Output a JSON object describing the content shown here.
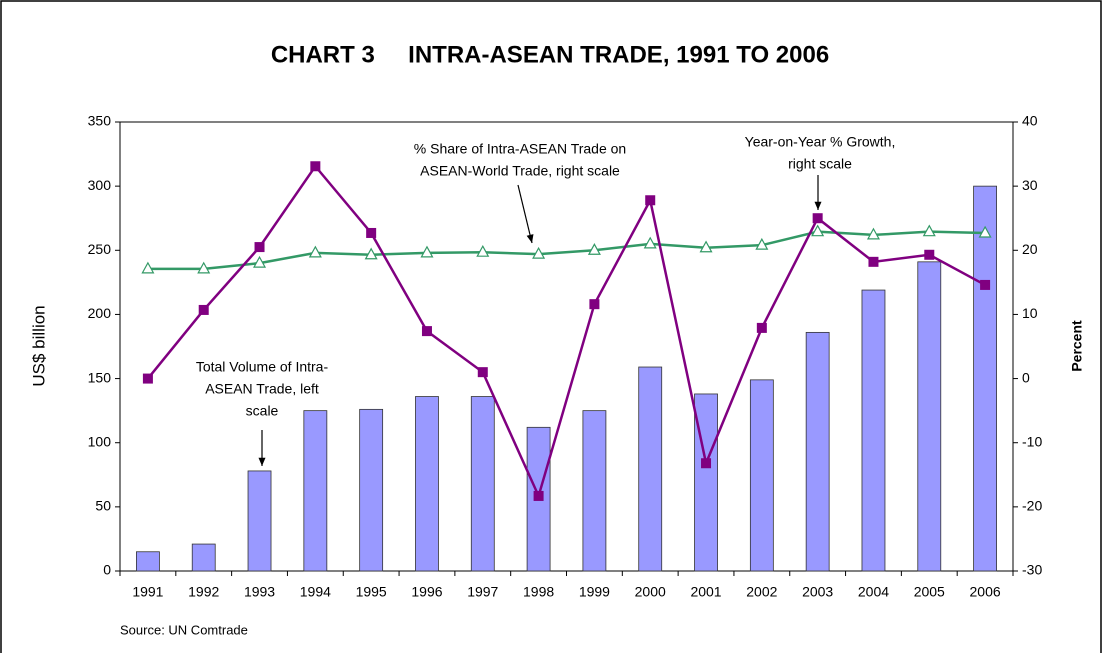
{
  "chart_data": {
    "type": "bar_line",
    "title": "CHART 3     INTRA-ASEAN TRADE, 1991 TO 2006",
    "y_label": "US$ billion",
    "y2_label": "Percent",
    "source": "Source: UN Comtrade",
    "categories": [
      "1991",
      "1992",
      "1993",
      "1994",
      "1995",
      "1996",
      "1997",
      "1998",
      "1999",
      "2000",
      "2001",
      "2002",
      "2003",
      "2004",
      "2005",
      "2006"
    ],
    "series": [
      {
        "name": "Total Volume of Intra-ASEAN Trade",
        "type": "bar",
        "color": "#9999ff",
        "values": [
          15,
          21,
          78,
          125,
          126,
          136,
          136,
          112,
          125,
          159,
          138,
          149,
          186,
          219,
          241,
          300
        ]
      },
      {
        "name": "% Share of Intra-ASEAN Trade on ASEAN-World Trade",
        "type": "line",
        "marker": "triangle",
        "axis": "y2",
        "color": "#339966",
        "values": [
          17.1,
          17.1,
          18.0,
          19.6,
          19.3,
          19.6,
          19.7,
          19.4,
          20.0,
          21.0,
          20.4,
          20.8,
          22.9,
          22.4,
          22.9,
          22.7
        ]
      },
      {
        "name": "Year-on-Year % Growth",
        "type": "line",
        "marker": "square",
        "axis": "y2",
        "color": "#800080",
        "values": [
          0,
          10.7,
          20.5,
          33.1,
          22.7,
          7.4,
          1.0,
          -18.3,
          11.6,
          27.8,
          -13.2,
          7.9,
          25.0,
          18.2,
          19.3,
          14.6
        ]
      }
    ],
    "ylim": [
      0,
      350
    ],
    "yticks": [
      0,
      50,
      100,
      150,
      200,
      250,
      300,
      350
    ],
    "y2lim": [
      -30,
      40
    ],
    "y2ticks": [
      -30,
      -20,
      -10,
      0,
      10,
      20,
      30,
      40
    ],
    "annotations": [
      {
        "lines": [
          "% Share of Intra-ASEAN Trade on",
          "ASEAN-World Trade, right scale"
        ]
      },
      {
        "lines": [
          "Year-on-Year % Growth,",
          "right scale"
        ]
      },
      {
        "lines": [
          "Total Volume of Intra-",
          "ASEAN Trade, left",
          "scale"
        ]
      }
    ]
  }
}
